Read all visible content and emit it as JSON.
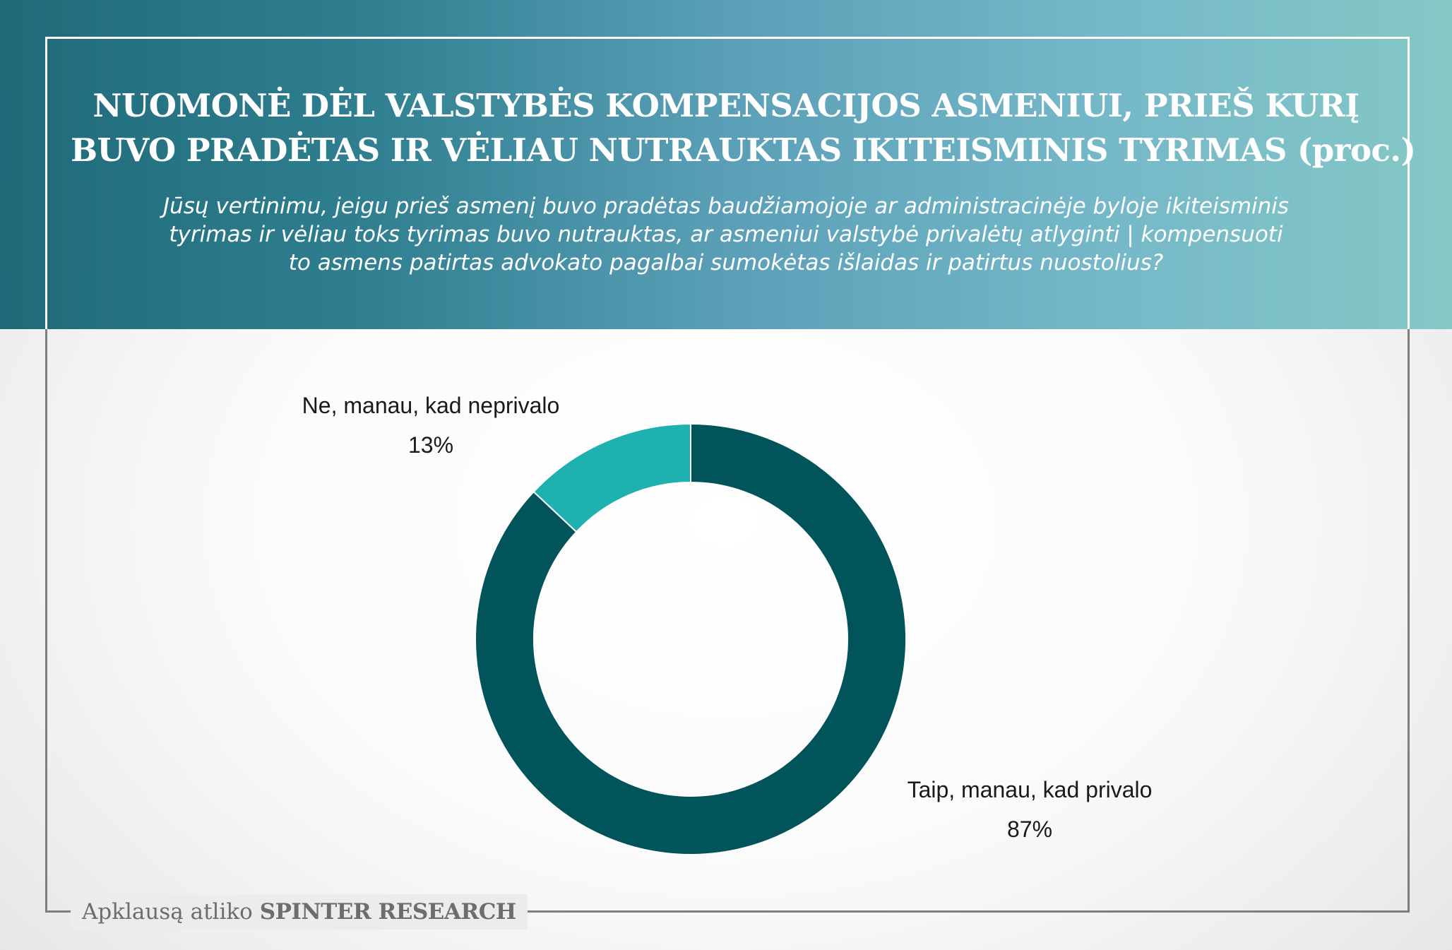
{
  "title": {
    "line1": "NUOMONĖ DĖL VALSTYBĖS KOMPENSACIJOS ASMENIUI, PRIEŠ KURĮ",
    "line2": "BUVO PRADĖTAS IR VĖLIAU NUTRAUKTAS IKITEISMINIS TYRIMAS (proc.)"
  },
  "subtitle": {
    "line1": "Jūsų vertinimu, jeigu prieš asmenį buvo pradėtas baudžiamojoje ar administracinėje byloje ikiteisminis",
    "line2": "tyrimas ir vėliau toks tyrimas buvo nutrauktas, ar asmeniui valstybė privalėtų atlyginti | kompensuoti",
    "line3": "to asmens patirtas advokato pagalbai sumokėtas išlaidas ir patirtus nuostolius?"
  },
  "chart_data": {
    "type": "pie",
    "style": "donut",
    "slices": [
      {
        "label": "Taip, manau, kad privalo",
        "value": 87,
        "value_label": "87%",
        "color": "#02545b"
      },
      {
        "label": "Ne, manau, kad neprivalo",
        "value": 13,
        "value_label": "13%",
        "color": "#1fb0b0"
      }
    ]
  },
  "footer": {
    "prefix": "Apklausą atliko",
    "brand": "SPINTER RESEARCH"
  },
  "colors": {
    "header_gradient_start": "#1f6a79",
    "header_gradient_end": "#85c8c6",
    "frame": "#7e7e7e"
  }
}
